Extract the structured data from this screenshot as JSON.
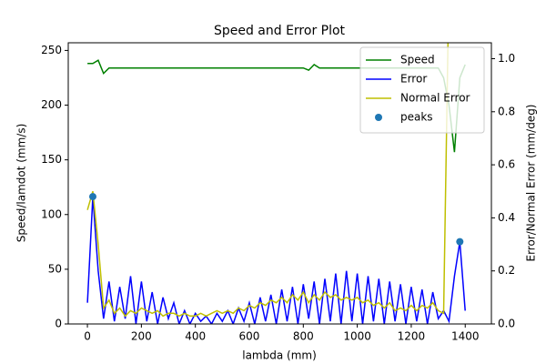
{
  "chart_data": {
    "type": "line",
    "title": "Speed and Error Plot",
    "xlabel": "lambda (mm)",
    "ylabel": "Speed/lamdot (mm/s)",
    "y2label": "Error/Normal Error (mm/deg)",
    "ylabel_color": "#008000",
    "y2label_color": "#0000ff",
    "xlim": [
      -71,
      1497
    ],
    "xticks": [
      0,
      200,
      400,
      600,
      800,
      1000,
      1200,
      1400
    ],
    "ylim": [
      0,
      257
    ],
    "yticks": [
      0,
      50,
      100,
      150,
      200,
      250
    ],
    "y2lim": [
      0,
      1.06
    ],
    "y2ticks": [
      {
        "value": 0,
        "label": "0.0"
      },
      0.2,
      0.4,
      0.6,
      0.8,
      {
        "value": 1,
        "label": "1.0"
      }
    ],
    "legend": "upper right",
    "x": [
      0,
      20,
      40,
      60,
      80,
      100,
      120,
      140,
      160,
      180,
      200,
      220,
      240,
      260,
      280,
      300,
      320,
      340,
      360,
      380,
      400,
      420,
      440,
      460,
      480,
      500,
      520,
      540,
      560,
      580,
      600,
      620,
      640,
      660,
      680,
      700,
      720,
      740,
      760,
      780,
      800,
      820,
      840,
      860,
      880,
      900,
      920,
      940,
      960,
      980,
      1000,
      1020,
      1040,
      1060,
      1080,
      1100,
      1120,
      1140,
      1160,
      1180,
      1200,
      1220,
      1240,
      1260,
      1280,
      1300,
      1320,
      1340,
      1360,
      1380,
      1400
    ],
    "series": [
      {
        "name": "Speed",
        "color": "#008000",
        "axis": "y",
        "values": [
          238,
          238,
          241,
          229,
          234,
          234,
          234,
          234,
          234,
          234,
          234,
          234,
          234,
          234,
          234,
          234,
          234,
          234,
          234,
          234,
          234,
          234,
          234,
          234,
          234,
          234,
          234,
          234,
          234,
          234,
          234,
          234,
          234,
          234,
          234,
          234,
          234,
          234,
          234,
          234,
          234,
          232,
          237,
          234,
          234,
          234,
          234,
          234,
          234,
          234,
          234,
          234,
          234,
          234,
          234,
          234,
          234,
          234,
          234,
          234,
          234,
          234,
          234,
          234,
          234,
          234,
          225,
          200,
          157,
          225,
          237
        ]
      },
      {
        "name": "Error",
        "color": "#0000ff",
        "axis": "y2",
        "values": [
          0.08,
          0.48,
          0.2,
          0.02,
          0.16,
          0.01,
          0.14,
          0.02,
          0.18,
          0.0,
          0.16,
          0.01,
          0.12,
          0.0,
          0.1,
          0.02,
          0.08,
          0.0,
          0.05,
          0.0,
          0.04,
          0.01,
          0.03,
          0.0,
          0.04,
          0.01,
          0.05,
          0.0,
          0.06,
          0.01,
          0.08,
          0.0,
          0.1,
          0.01,
          0.11,
          0.0,
          0.13,
          0.01,
          0.14,
          0.0,
          0.15,
          0.02,
          0.16,
          0.0,
          0.17,
          0.01,
          0.19,
          0.0,
          0.2,
          0.01,
          0.19,
          0.0,
          0.18,
          0.01,
          0.17,
          0.0,
          0.16,
          0.01,
          0.15,
          0.0,
          0.14,
          0.01,
          0.13,
          0.0,
          0.12,
          0.02,
          0.05,
          0.01,
          0.18,
          0.31,
          0.05
        ]
      },
      {
        "name": "Normal Error",
        "color": "#bfbf00",
        "axis": "y2",
        "values": [
          0.43,
          0.5,
          0.3,
          0.06,
          0.09,
          0.04,
          0.06,
          0.03,
          0.05,
          0.04,
          0.06,
          0.05,
          0.04,
          0.05,
          0.03,
          0.04,
          0.04,
          0.03,
          0.04,
          0.03,
          0.03,
          0.04,
          0.03,
          0.04,
          0.05,
          0.04,
          0.05,
          0.04,
          0.06,
          0.05,
          0.07,
          0.06,
          0.08,
          0.07,
          0.09,
          0.08,
          0.1,
          0.08,
          0.11,
          0.09,
          0.12,
          0.08,
          0.11,
          0.09,
          0.12,
          0.1,
          0.11,
          0.09,
          0.1,
          0.09,
          0.1,
          0.08,
          0.09,
          0.07,
          0.08,
          0.06,
          0.08,
          0.05,
          0.06,
          0.05,
          0.07,
          0.05,
          0.07,
          0.06,
          0.08,
          0.05,
          0.04,
          1.3,
          null,
          null,
          null
        ]
      },
      {
        "name": "peaks",
        "color": "#1f77b4",
        "axis": "y2",
        "type": "scatter",
        "x": [
          20,
          1380
        ],
        "values": [
          0.48,
          0.31
        ]
      }
    ]
  }
}
